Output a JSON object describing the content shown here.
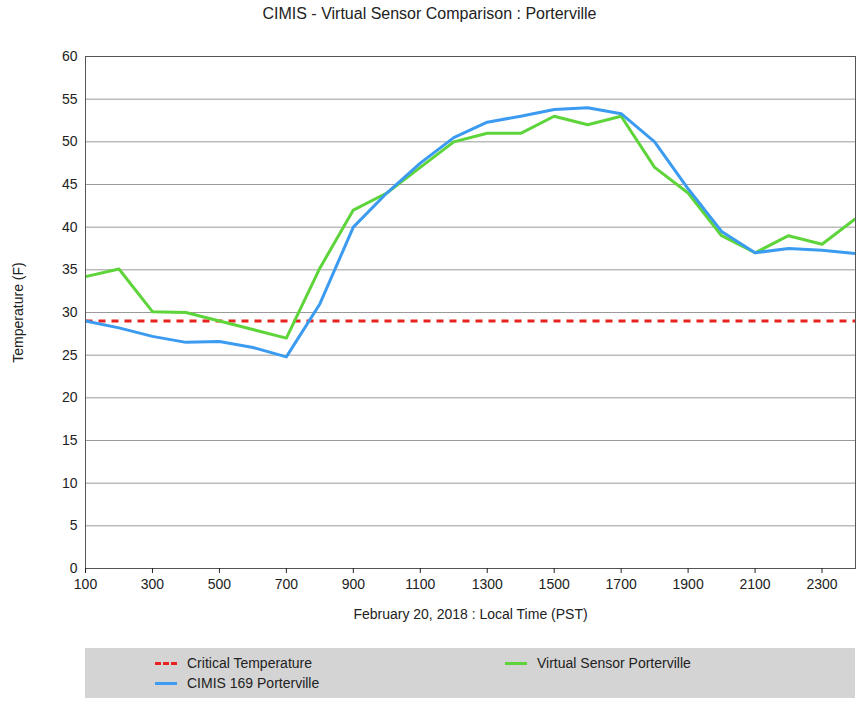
{
  "chart_data": {
    "type": "line",
    "title": "CIMIS - Virtual Sensor Comparison : Porterville",
    "x_label": "February 20, 2018 : Local Time (PST)",
    "y_label": "Temperature (F)",
    "x": [
      100,
      200,
      300,
      400,
      500,
      600,
      700,
      800,
      900,
      1000,
      1100,
      1200,
      1300,
      1400,
      1500,
      1600,
      1700,
      1800,
      1900,
      2000,
      2100,
      2200,
      2300,
      2400
    ],
    "series": [
      {
        "name": "Critical Temperature",
        "color": "#e8231f",
        "line_style": "dashed",
        "values": [
          29,
          29,
          29,
          29,
          29,
          29,
          29,
          29,
          29,
          29,
          29,
          29,
          29,
          29,
          29,
          29,
          29,
          29,
          29,
          29,
          29,
          29,
          29,
          29
        ]
      },
      {
        "name": "Virtual Sensor Porterville",
        "color": "#5ed43b",
        "line_style": "solid",
        "values": [
          34.2,
          35.1,
          30.1,
          30,
          29,
          28,
          27,
          35.2,
          42,
          44,
          47,
          50,
          51,
          51,
          53,
          52,
          53,
          47,
          44,
          39,
          37,
          39,
          38,
          41
        ]
      },
      {
        "name": "CIMIS 169 Porterville",
        "color": "#3a9bf0",
        "line_style": "solid",
        "values": [
          29,
          28.2,
          27.2,
          26.5,
          26.6,
          25.9,
          24.8,
          31,
          40,
          44,
          47.5,
          50.5,
          52.3,
          53,
          53.8,
          54,
          53.3,
          50,
          44.5,
          39.5,
          37,
          37.5,
          37.3,
          36.9
        ]
      }
    ],
    "xlim": [
      100,
      2400
    ],
    "xticks": [
      100,
      300,
      500,
      700,
      900,
      1100,
      1300,
      1500,
      1700,
      1900,
      2100,
      2300
    ],
    "ylim": [
      0,
      60
    ],
    "yticks": [
      0,
      5,
      10,
      15,
      20,
      25,
      30,
      35,
      40,
      45,
      50,
      55,
      60
    ],
    "grid": true,
    "legend": "bottom"
  }
}
